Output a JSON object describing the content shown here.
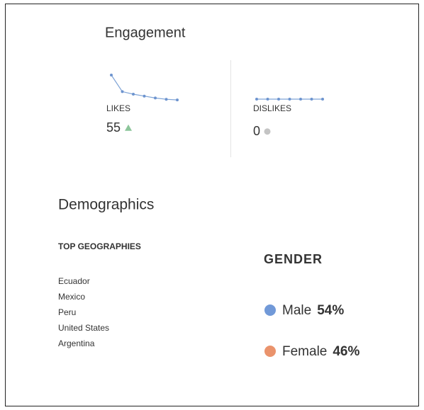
{
  "engagement": {
    "title": "Engagement",
    "likes": {
      "label": "LIKES",
      "value": 55,
      "trend": [
        20,
        7,
        5,
        3.5,
        2,
        1,
        0.5
      ]
    },
    "dislikes": {
      "label": "DISLIKES",
      "value": 0,
      "trend": [
        0,
        0,
        0,
        0,
        0,
        0,
        0
      ]
    }
  },
  "demographics": {
    "title": "Demographics",
    "geographies": {
      "title": "TOP GEOGRAPHIES",
      "items": [
        "Ecuador",
        "Mexico",
        "Peru",
        "United States",
        "Argentina"
      ]
    },
    "gender": {
      "title": "GENDER",
      "names": [
        "Male",
        "Female"
      ],
      "values": [
        54,
        46
      ],
      "value_labels": [
        "54%",
        "46%"
      ],
      "colors": [
        "#7199d8",
        "#ea936c"
      ]
    }
  }
}
